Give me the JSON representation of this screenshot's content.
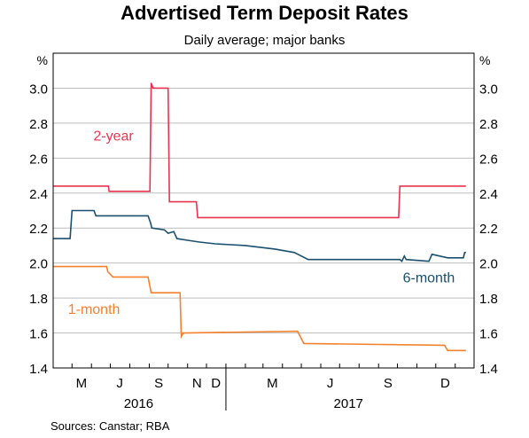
{
  "chart_data": {
    "type": "line",
    "title": "Advertised Term Deposit Rates",
    "subtitle": "Daily average; major banks",
    "source": "Sources:   Canstar; RBA",
    "y_unit_left": "%",
    "y_unit_right": "%",
    "ylim": [
      1.4,
      3.2
    ],
    "y_ticks": [
      "1.4",
      "1.6",
      "1.8",
      "2.0",
      "2.2",
      "2.4",
      "2.6",
      "2.8",
      "3.0"
    ],
    "xlim": [
      "2016-04-01",
      "2018-01-31"
    ],
    "month_ticks": [
      {
        "date": "2016-05-01",
        "label": "M"
      },
      {
        "date": "2016-07-01",
        "label": "J"
      },
      {
        "date": "2016-09-01",
        "label": "S"
      },
      {
        "date": "2016-11-01",
        "label": "N"
      },
      {
        "date": "2016-12-01",
        "label": "D"
      },
      {
        "date": "2017-03-01",
        "label": "M"
      },
      {
        "date": "2017-06-01",
        "label": "J"
      },
      {
        "date": "2017-09-01",
        "label": "S"
      },
      {
        "date": "2017-12-01",
        "label": "D"
      }
    ],
    "year_labels": [
      {
        "label": "2016",
        "date": "2016-08-15"
      },
      {
        "label": "2017",
        "date": "2017-07-15"
      }
    ],
    "grid": true,
    "series": [
      {
        "name": "2-year",
        "color": "#e8344f",
        "label_date": "2016-07-06",
        "label_value": 2.7,
        "points": [
          [
            "2016-04-01",
            2.44
          ],
          [
            "2016-06-28",
            2.44
          ],
          [
            "2016-06-29",
            2.41
          ],
          [
            "2016-09-02",
            2.41
          ],
          [
            "2016-09-04",
            3.03
          ],
          [
            "2016-09-07",
            3.0
          ],
          [
            "2016-10-01",
            3.0
          ],
          [
            "2016-10-03",
            2.35
          ],
          [
            "2016-11-15",
            2.35
          ],
          [
            "2016-11-17",
            2.26
          ],
          [
            "2017-10-03",
            2.26
          ],
          [
            "2017-10-05",
            2.44
          ],
          [
            "2018-01-18",
            2.44
          ]
        ]
      },
      {
        "name": "6-month",
        "color": "#1a4f6e",
        "label_date": "2017-11-20",
        "label_value": 1.89,
        "points": [
          [
            "2016-04-01",
            2.14
          ],
          [
            "2016-04-28",
            2.14
          ],
          [
            "2016-05-01",
            2.3
          ],
          [
            "2016-06-05",
            2.3
          ],
          [
            "2016-06-08",
            2.27
          ],
          [
            "2016-08-30",
            2.27
          ],
          [
            "2016-09-03",
            2.23
          ],
          [
            "2016-09-05",
            2.2
          ],
          [
            "2016-09-25",
            2.19
          ],
          [
            "2016-10-01",
            2.17
          ],
          [
            "2016-10-10",
            2.18
          ],
          [
            "2016-10-15",
            2.14
          ],
          [
            "2016-11-01",
            2.13
          ],
          [
            "2016-11-20",
            2.12
          ],
          [
            "2016-12-15",
            2.11
          ],
          [
            "2017-02-01",
            2.1
          ],
          [
            "2017-03-20",
            2.08
          ],
          [
            "2017-04-20",
            2.06
          ],
          [
            "2017-05-12",
            2.02
          ],
          [
            "2017-09-25",
            2.02
          ],
          [
            "2017-10-05",
            2.02
          ],
          [
            "2017-10-08",
            2.01
          ],
          [
            "2017-10-12",
            2.04
          ],
          [
            "2017-10-15",
            2.02
          ],
          [
            "2017-11-20",
            2.01
          ],
          [
            "2017-11-25",
            2.05
          ],
          [
            "2017-12-20",
            2.03
          ],
          [
            "2018-01-14",
            2.03
          ],
          [
            "2018-01-16",
            2.06
          ],
          [
            "2018-01-18",
            2.06
          ]
        ]
      },
      {
        "name": "1-month",
        "color": "#f4812e",
        "label_date": "2016-06-05",
        "label_value": 1.71,
        "points": [
          [
            "2016-04-01",
            1.98
          ],
          [
            "2016-06-25",
            1.98
          ],
          [
            "2016-06-27",
            1.95
          ],
          [
            "2016-07-05",
            1.92
          ],
          [
            "2016-08-30",
            1.92
          ],
          [
            "2016-09-04",
            1.83
          ],
          [
            "2016-10-20",
            1.83
          ],
          [
            "2016-10-22",
            1.58
          ],
          [
            "2016-10-25",
            1.6
          ],
          [
            "2017-04-25",
            1.61
          ],
          [
            "2017-05-05",
            1.54
          ],
          [
            "2017-12-15",
            1.53
          ],
          [
            "2017-12-20",
            1.5
          ],
          [
            "2018-01-18",
            1.5
          ]
        ]
      }
    ]
  }
}
